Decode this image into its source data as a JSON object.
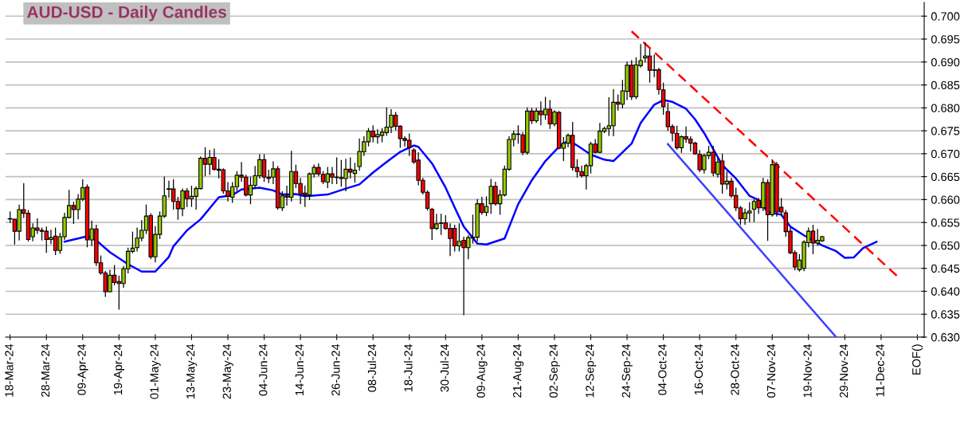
{
  "chart_data": {
    "type": "candlestick",
    "title": "AUD-USD - Daily Candles",
    "categories": [
      "18-Mar-24",
      null,
      null,
      null,
      null,
      null,
      null,
      null,
      "28-Mar-24",
      null,
      null,
      null,
      null,
      null,
      null,
      null,
      "09-Apr-24",
      null,
      null,
      null,
      null,
      null,
      null,
      null,
      "19-Apr-24",
      null,
      null,
      null,
      null,
      null,
      null,
      null,
      "01-May-24",
      null,
      null,
      null,
      null,
      null,
      null,
      null,
      "13-May-24",
      null,
      null,
      null,
      null,
      null,
      null,
      null,
      "23-May-24",
      null,
      null,
      null,
      null,
      null,
      null,
      null,
      "04-Jun-24",
      null,
      null,
      null,
      null,
      null,
      null,
      null,
      "14-Jun-24",
      null,
      null,
      null,
      null,
      null,
      null,
      null,
      "26-Jun-24",
      null,
      null,
      null,
      null,
      null,
      null,
      null,
      "08-Jul-24",
      null,
      null,
      null,
      null,
      null,
      null,
      null,
      "18-Jul-24",
      null,
      null,
      null,
      null,
      null,
      null,
      null,
      "30-Jul-24",
      null,
      null,
      null,
      null,
      null,
      null,
      null,
      "09-Aug-24",
      null,
      null,
      null,
      null,
      null,
      null,
      null,
      "21-Aug-24",
      null,
      null,
      null,
      null,
      null,
      null,
      null,
      "02-Sep-24",
      null,
      null,
      null,
      null,
      null,
      null,
      null,
      "12-Sep-24",
      null,
      null,
      null,
      null,
      null,
      null,
      null,
      "24-Sep-24",
      null,
      null,
      null,
      null,
      null,
      null,
      null,
      "04-Oct-24",
      null,
      null,
      null,
      null,
      null,
      null,
      null,
      "16-Oct-24",
      null,
      null,
      null,
      null,
      null,
      null,
      null,
      "28-Oct-24",
      null,
      null,
      null,
      null,
      null,
      null,
      null,
      "07-Nov-24",
      null,
      null,
      null,
      null,
      null,
      null,
      null,
      "19-Nov-24",
      null,
      null,
      null,
      null,
      null,
      null,
      null,
      "29-Nov-24",
      null,
      null,
      null,
      null,
      null,
      null,
      null,
      "11-Dec-24",
      null,
      null,
      null,
      null,
      null,
      null,
      null,
      "EOF()",
      null
    ],
    "ylim": [
      0.63,
      0.703
    ],
    "yticks": [
      {
        "value": 0.63,
        "label": "0.630"
      },
      {
        "value": 0.635,
        "label": "0.635"
      },
      {
        "value": 0.64,
        "label": "0.640"
      },
      {
        "value": 0.645,
        "label": "0.645"
      },
      {
        "value": 0.65,
        "label": "0.650"
      },
      {
        "value": 0.655,
        "label": "0.655"
      },
      {
        "value": 0.66,
        "label": "0.660"
      },
      {
        "value": 0.665,
        "label": "0.665"
      },
      {
        "value": 0.67,
        "label": "0.670"
      },
      {
        "value": 0.675,
        "label": "0.675"
      },
      {
        "value": 0.68,
        "label": "0.680"
      },
      {
        "value": 0.685,
        "label": "0.685"
      },
      {
        "value": 0.69,
        "label": "0.690"
      },
      {
        "value": 0.695,
        "label": "0.695"
      },
      {
        "value": 0.7,
        "label": "0.700"
      }
    ],
    "grid": "y",
    "series": [
      {
        "colors": [
          "#000000",
          "#ff0000",
          "#99cc00",
          "#ff0000",
          "#ff0000",
          "#99cc00",
          "#ff0000",
          "#ff0000",
          "#ff0000",
          "#99cc00",
          "#ff0000",
          "#99cc00",
          "#99cc00",
          "#99cc00",
          "#ff0000",
          "#99cc00",
          "#99cc00",
          "#ff0000",
          "#99cc00",
          "#ff0000",
          "#ff0000",
          "#ff0000",
          "#99cc00",
          "#ff0000",
          "#ff0000",
          "#99cc00",
          "#99cc00",
          "#99cc00",
          "#99cc00",
          "#99cc00",
          "#99cc00",
          "#ff0000",
          "#99cc00",
          "#99cc00",
          "#99cc00",
          "#000000",
          "#ff0000",
          "#ff0000",
          "#99cc00",
          "#ff0000",
          "#99cc00",
          "#99cc00",
          "#99cc00",
          "#ff0000",
          "#99cc00",
          "#ff0000",
          "#ff0000",
          "#ff0000",
          "#ff0000",
          "#99cc00",
          "#99cc00",
          "#ff0000",
          "#ff0000",
          "#99cc00",
          "#99cc00",
          "#99cc00",
          "#ff0000",
          "#ff0000",
          "#99cc00",
          "#ff0000",
          "#99cc00",
          "#ff0000",
          "#99cc00",
          "#ff0000",
          "#ff0000",
          "#ff0000",
          "#99cc00",
          "#99cc00",
          "#ff0000",
          "#ff0000",
          "#99cc00",
          "#ff0000",
          "#ff0000",
          "#ff0000",
          "#99cc00",
          "#ff0000",
          "#99cc00",
          "#99cc00",
          "#99cc00",
          "#99cc00",
          "#ff0000",
          "#99cc00",
          "#99cc00",
          "#99cc00",
          "#99cc00",
          "#ff0000",
          "#ff0000",
          "#ff0000",
          "#ff0000",
          "#ff0000",
          "#ff0000",
          "#ff0000",
          "#ff0000",
          "#ff0000",
          "#99cc00",
          "#99cc00",
          "#ff0000",
          "#ff0000",
          "#ff0000",
          "#99cc00",
          "#ff0000",
          "#99cc00",
          "#99cc00",
          "#99cc00",
          "#ff0000",
          "#99cc00",
          "#99cc00",
          "#ff0000",
          "#99cc00",
          "#99cc00",
          "#99cc00",
          "#99cc00",
          "#ff0000",
          "#ff0000",
          "#99cc00",
          "#ff0000",
          "#99cc00",
          "#ff0000",
          "#99cc00",
          "#ff0000",
          "#99cc00",
          "#ff0000",
          "#99cc00",
          "#99cc00",
          "#ff0000",
          "#ff0000",
          "#ff0000",
          "#99cc00",
          "#99cc00",
          "#ff0000",
          "#99cc00",
          "#99cc00",
          "#99cc00",
          "#99cc00",
          "#ff0000",
          "#99cc00",
          "#99cc00",
          "#ff0000",
          "#99cc00",
          "#99cc00",
          "#99cc00",
          "#ff0000",
          "#ff0000",
          "#ff0000",
          "#ff0000",
          "#ff0000",
          "#ff0000",
          "#ff0000",
          "#99cc00",
          "#ff0000",
          "#ff0000",
          "#ff0000",
          "#ff0000",
          "#99cc00",
          "#99cc00",
          "#ff0000",
          "#99cc00",
          "#ff0000",
          "#99cc00",
          "#ff0000",
          "#ff0000",
          "#ff0000",
          "#99cc00",
          "#99cc00",
          "#99cc00",
          "#ff0000",
          "#99cc00",
          "#ff0000",
          "#99cc00",
          "#ff0000",
          "#ff0000",
          "#ff0000",
          "#ff0000",
          "#ff0000",
          "#99cc00",
          "#99cc00",
          "#99cc00",
          "#ff0000",
          "#99cc00",
          "#99cc00",
          null,
          null,
          null,
          null,
          null,
          null,
          null,
          null,
          null,
          null,
          null,
          null,
          null,
          null,
          null,
          null,
          null,
          null,
          null,
          null,
          null,
          null
        ],
        "ohlc": [
          [
            0.6558,
            0.6573,
            0.655,
            0.6558
          ],
          [
            0.6557,
            0.6557,
            0.6503,
            0.6531
          ],
          [
            0.6531,
            0.6588,
            0.6512,
            0.6578
          ],
          [
            0.6578,
            0.6635,
            0.6561,
            0.657
          ],
          [
            0.657,
            0.6576,
            0.651,
            0.6513
          ],
          [
            0.6519,
            0.6547,
            0.651,
            0.6538
          ],
          [
            0.6538,
            0.6558,
            0.6526,
            0.6533
          ],
          [
            0.6533,
            0.6538,
            0.6512,
            0.6531
          ],
          [
            0.6531,
            0.654,
            0.6485,
            0.6513
          ],
          [
            0.6513,
            0.6533,
            0.6504,
            0.6517
          ],
          [
            0.652,
            0.6538,
            0.648,
            0.6489
          ],
          [
            0.6489,
            0.6526,
            0.6483,
            0.6519
          ],
          [
            0.6519,
            0.657,
            0.6513,
            0.6561
          ],
          [
            0.6561,
            0.662,
            0.656,
            0.6587
          ],
          [
            0.6587,
            0.6594,
            0.6548,
            0.6578
          ],
          [
            0.6578,
            0.6611,
            0.6558,
            0.6601
          ],
          [
            0.6601,
            0.6643,
            0.6598,
            0.6626
          ],
          [
            0.6627,
            0.6632,
            0.6497,
            0.6512
          ],
          [
            0.6512,
            0.6553,
            0.65,
            0.6536
          ],
          [
            0.6536,
            0.6544,
            0.6456,
            0.6462
          ],
          [
            0.6462,
            0.6477,
            0.6437,
            0.644
          ],
          [
            0.644,
            0.6443,
            0.6389,
            0.6399
          ],
          [
            0.6399,
            0.6446,
            0.6399,
            0.6435
          ],
          [
            0.6435,
            0.6456,
            0.6414,
            0.6419
          ],
          [
            0.6421,
            0.6433,
            0.6361,
            0.6417
          ],
          [
            0.6417,
            0.6454,
            0.6409,
            0.6449
          ],
          [
            0.6449,
            0.6494,
            0.644,
            0.6487
          ],
          [
            0.6487,
            0.6529,
            0.6484,
            0.6494
          ],
          [
            0.6495,
            0.6538,
            0.6488,
            0.6516
          ],
          [
            0.6516,
            0.6554,
            0.651,
            0.6533
          ],
          [
            0.6533,
            0.6588,
            0.6526,
            0.6564
          ],
          [
            0.6565,
            0.6569,
            0.6471,
            0.6475
          ],
          [
            0.6475,
            0.6541,
            0.6464,
            0.6524
          ],
          [
            0.6524,
            0.6573,
            0.6515,
            0.6564
          ],
          [
            0.6564,
            0.6649,
            0.6561,
            0.6608
          ],
          [
            0.6623,
            0.664,
            0.6605,
            0.6623
          ],
          [
            0.6623,
            0.6643,
            0.6579,
            0.6596
          ],
          [
            0.6596,
            0.6605,
            0.6557,
            0.658
          ],
          [
            0.658,
            0.6623,
            0.6565,
            0.6619
          ],
          [
            0.6619,
            0.6624,
            0.6585,
            0.6602
          ],
          [
            0.6602,
            0.6629,
            0.6585,
            0.6607
          ],
          [
            0.6607,
            0.6628,
            0.6579,
            0.6624
          ],
          [
            0.6624,
            0.6693,
            0.6623,
            0.669
          ],
          [
            0.669,
            0.6713,
            0.6652,
            0.6677
          ],
          [
            0.6677,
            0.6707,
            0.6655,
            0.6692
          ],
          [
            0.6692,
            0.671,
            0.6664,
            0.6666
          ],
          [
            0.6666,
            0.6687,
            0.6647,
            0.6664
          ],
          [
            0.6665,
            0.6667,
            0.6614,
            0.6619
          ],
          [
            0.6619,
            0.6637,
            0.6597,
            0.6607
          ],
          [
            0.6605,
            0.6637,
            0.6594,
            0.6628
          ],
          [
            0.6628,
            0.6661,
            0.662,
            0.6653
          ],
          [
            0.6653,
            0.6681,
            0.664,
            0.6649
          ],
          [
            0.6649,
            0.6653,
            0.6608,
            0.661
          ],
          [
            0.661,
            0.6649,
            0.6591,
            0.6631
          ],
          [
            0.6631,
            0.6672,
            0.6626,
            0.6652
          ],
          [
            0.6652,
            0.6698,
            0.6647,
            0.6687
          ],
          [
            0.6687,
            0.6698,
            0.664,
            0.6649
          ],
          [
            0.6649,
            0.6664,
            0.6637,
            0.6646
          ],
          [
            0.6649,
            0.6682,
            0.6635,
            0.6667
          ],
          [
            0.6667,
            0.6672,
            0.6579,
            0.6582
          ],
          [
            0.6582,
            0.6617,
            0.6576,
            0.6608
          ],
          [
            0.6608,
            0.6629,
            0.6588,
            0.6605
          ],
          [
            0.6605,
            0.6705,
            0.6597,
            0.6661
          ],
          [
            0.6661,
            0.6675,
            0.6626,
            0.6635
          ],
          [
            0.6635,
            0.6646,
            0.6591,
            0.6612
          ],
          [
            0.6614,
            0.6629,
            0.6585,
            0.661
          ],
          [
            0.661,
            0.6658,
            0.66,
            0.6656
          ],
          [
            0.6656,
            0.6675,
            0.6649,
            0.667
          ],
          [
            0.667,
            0.6678,
            0.6652,
            0.6656
          ],
          [
            0.6655,
            0.6661,
            0.6635,
            0.6639
          ],
          [
            0.6638,
            0.667,
            0.6626,
            0.6656
          ],
          [
            0.6656,
            0.667,
            0.6635,
            0.6649
          ],
          [
            0.6649,
            0.6691,
            0.6635,
            0.6648
          ],
          [
            0.6648,
            0.6685,
            0.6629,
            0.6646
          ],
          [
            0.6646,
            0.6688,
            0.6619,
            0.6666
          ],
          [
            0.6666,
            0.6691,
            0.6647,
            0.666
          ],
          [
            0.6657,
            0.6679,
            0.6638,
            0.6664
          ],
          [
            0.6672,
            0.6732,
            0.6664,
            0.6705
          ],
          [
            0.6704,
            0.6737,
            0.6696,
            0.6726
          ],
          [
            0.6726,
            0.6755,
            0.6717,
            0.6749
          ],
          [
            0.6749,
            0.6761,
            0.6726,
            0.6737
          ],
          [
            0.6737,
            0.6752,
            0.6723,
            0.6742
          ],
          [
            0.674,
            0.6755,
            0.6726,
            0.6747
          ],
          [
            0.6746,
            0.68,
            0.674,
            0.6758
          ],
          [
            0.6758,
            0.6796,
            0.6746,
            0.6784
          ],
          [
            0.6784,
            0.679,
            0.6752,
            0.676
          ],
          [
            0.676,
            0.6761,
            0.6714,
            0.6733
          ],
          [
            0.6733,
            0.6737,
            0.6717,
            0.6729
          ],
          [
            0.6729,
            0.6743,
            0.6696,
            0.6714
          ],
          [
            0.6708,
            0.6711,
            0.6679,
            0.6682
          ],
          [
            0.6686,
            0.6702,
            0.6632,
            0.6642
          ],
          [
            0.6642,
            0.6646,
            0.6612,
            0.6616
          ],
          [
            0.6616,
            0.6619,
            0.6577,
            0.6581
          ],
          [
            0.6579,
            0.6581,
            0.6513,
            0.6537
          ],
          [
            0.6537,
            0.6568,
            0.6535,
            0.6547
          ],
          [
            0.6548,
            0.6568,
            0.6524,
            0.6549
          ],
          [
            0.6549,
            0.6565,
            0.6535,
            0.6537
          ],
          [
            0.6537,
            0.6547,
            0.6478,
            0.6515
          ],
          [
            0.6537,
            0.6544,
            0.6488,
            0.6499
          ],
          [
            0.6499,
            0.6547,
            0.6488,
            0.6509
          ],
          [
            0.6511,
            0.6518,
            0.6349,
            0.6495
          ],
          [
            0.6495,
            0.6521,
            0.6471,
            0.6517
          ],
          [
            0.6516,
            0.6566,
            0.6505,
            0.6518
          ],
          [
            0.6518,
            0.66,
            0.651,
            0.6591
          ],
          [
            0.6591,
            0.6605,
            0.6568,
            0.6572
          ],
          [
            0.6572,
            0.6606,
            0.6565,
            0.6585
          ],
          [
            0.6591,
            0.6644,
            0.657,
            0.6629
          ],
          [
            0.6629,
            0.6638,
            0.6588,
            0.6591
          ],
          [
            0.6591,
            0.662,
            0.6568,
            0.661
          ],
          [
            0.661,
            0.6673,
            0.6608,
            0.6666
          ],
          [
            0.6666,
            0.6737,
            0.6664,
            0.6731
          ],
          [
            0.6731,
            0.6749,
            0.6717,
            0.6743
          ],
          [
            0.6743,
            0.6761,
            0.6723,
            0.6742
          ],
          [
            0.6741,
            0.6746,
            0.6698,
            0.6703
          ],
          [
            0.6703,
            0.68,
            0.6699,
            0.6793
          ],
          [
            0.6793,
            0.6799,
            0.6766,
            0.6772
          ],
          [
            0.6772,
            0.6799,
            0.6768,
            0.6793
          ],
          [
            0.6793,
            0.6813,
            0.6763,
            0.6785
          ],
          [
            0.6785,
            0.6823,
            0.6775,
            0.6797
          ],
          [
            0.6797,
            0.6816,
            0.6755,
            0.6765
          ],
          [
            0.6765,
            0.6794,
            0.6761,
            0.6791
          ],
          [
            0.679,
            0.6792,
            0.6711,
            0.6712
          ],
          [
            0.6712,
            0.6735,
            0.6685,
            0.6723
          ],
          [
            0.6723,
            0.6743,
            0.6715,
            0.674
          ],
          [
            0.674,
            0.6768,
            0.6664,
            0.667
          ],
          [
            0.667,
            0.6687,
            0.6649,
            0.6661
          ],
          [
            0.6661,
            0.6673,
            0.6649,
            0.6652
          ],
          [
            0.6652,
            0.6677,
            0.6623,
            0.6674
          ],
          [
            0.6674,
            0.6725,
            0.6658,
            0.6721
          ],
          [
            0.6721,
            0.6731,
            0.6702,
            0.6703
          ],
          [
            0.6703,
            0.6766,
            0.6702,
            0.6749
          ],
          [
            0.6749,
            0.6758,
            0.6746,
            0.6755
          ],
          [
            0.6755,
            0.6822,
            0.674,
            0.6761
          ],
          [
            0.6761,
            0.684,
            0.6739,
            0.6812
          ],
          [
            0.6812,
            0.6828,
            0.6795,
            0.6808
          ],
          [
            0.6808,
            0.686,
            0.68,
            0.6837
          ],
          [
            0.6836,
            0.69,
            0.6818,
            0.6893
          ],
          [
            0.6893,
            0.6903,
            0.6818,
            0.6824
          ],
          [
            0.6824,
            0.6909,
            0.682,
            0.6894
          ],
          [
            0.6892,
            0.6938,
            0.6889,
            0.6903
          ],
          [
            0.6909,
            0.6941,
            0.69,
            0.6913
          ],
          [
            0.6913,
            0.6927,
            0.6856,
            0.6882
          ],
          [
            0.6883,
            0.6915,
            0.6868,
            0.6882
          ],
          [
            0.6883,
            0.6886,
            0.683,
            0.684
          ],
          [
            0.6839,
            0.6854,
            0.6786,
            0.6803
          ],
          [
            0.6792,
            0.681,
            0.6751,
            0.6759
          ],
          [
            0.6759,
            0.6763,
            0.6728,
            0.6745
          ],
          [
            0.6744,
            0.676,
            0.671,
            0.6713
          ],
          [
            0.6713,
            0.6739,
            0.6703,
            0.6737
          ],
          [
            0.6737,
            0.6758,
            0.6725,
            0.6732
          ],
          [
            0.6732,
            0.6737,
            0.6706,
            0.6723
          ],
          [
            0.6723,
            0.6725,
            0.6699,
            0.67
          ],
          [
            0.6699,
            0.6707,
            0.6661,
            0.6665
          ],
          [
            0.6665,
            0.6699,
            0.6658,
            0.6696
          ],
          [
            0.6696,
            0.6716,
            0.6689,
            0.6703
          ],
          [
            0.6703,
            0.6716,
            0.6652,
            0.6658
          ],
          [
            0.6655,
            0.669,
            0.6649,
            0.6682
          ],
          [
            0.6684,
            0.6699,
            0.6614,
            0.6634
          ],
          [
            0.6634,
            0.666,
            0.6623,
            0.664
          ],
          [
            0.664,
            0.6646,
            0.6605,
            0.6608
          ],
          [
            0.6609,
            0.6625,
            0.6576,
            0.6582
          ],
          [
            0.6582,
            0.6585,
            0.6546,
            0.6558
          ],
          [
            0.6558,
            0.6579,
            0.6546,
            0.6571
          ],
          [
            0.6571,
            0.6593,
            0.6552,
            0.6575
          ],
          [
            0.6579,
            0.6599,
            0.6552,
            0.6596
          ],
          [
            0.6598,
            0.6602,
            0.657,
            0.6582
          ],
          [
            0.6582,
            0.6646,
            0.6576,
            0.6637
          ],
          [
            0.6637,
            0.6643,
            0.6511,
            0.6567
          ],
          [
            0.6567,
            0.6687,
            0.6564,
            0.6676
          ],
          [
            0.6676,
            0.6681,
            0.6564,
            0.6573
          ],
          [
            0.6583,
            0.6602,
            0.6567,
            0.6573
          ],
          [
            0.6571,
            0.6576,
            0.652,
            0.653
          ],
          [
            0.6531,
            0.6538,
            0.6482,
            0.6484
          ],
          [
            0.6484,
            0.6488,
            0.6447,
            0.6453
          ],
          [
            0.6447,
            0.648,
            0.6444,
            0.6468
          ],
          [
            0.645,
            0.651,
            0.6445,
            0.6507
          ],
          [
            0.6506,
            0.6538,
            0.6497,
            0.6531
          ],
          [
            0.6531,
            0.6544,
            0.6482,
            0.6505
          ],
          [
            0.6505,
            0.6535,
            0.65,
            0.6511
          ],
          [
            0.651,
            0.652,
            0.6509,
            0.6519
          ],
          null,
          null,
          null,
          null,
          null,
          null,
          null,
          null,
          null,
          null,
          null,
          null,
          null,
          null,
          null,
          null,
          null,
          null,
          null,
          null,
          null,
          null
        ]
      },
      {
        "type": "line",
        "color": "#0000ff",
        "values": [
          null,
          null,
          null,
          null,
          null,
          null,
          null,
          null,
          null,
          null,
          null,
          null,
          0.6508,
          null,
          null,
          null,
          null,
          0.652,
          null,
          0.6511,
          null,
          null,
          0.6485,
          null,
          null,
          null,
          0.6459,
          null,
          null,
          0.6443,
          null,
          null,
          0.6443,
          null,
          null,
          0.6475,
          0.6498,
          null,
          null,
          0.6533,
          null,
          null,
          0.6557,
          null,
          null,
          null,
          0.6605,
          null,
          null,
          0.661,
          null,
          0.6622,
          null,
          null,
          null,
          0.6626,
          null,
          null,
          0.662,
          null,
          0.6611,
          null,
          null,
          0.6612,
          null,
          0.6607,
          null,
          null,
          null,
          null,
          0.6611,
          null,
          null,
          null,
          0.6624,
          null,
          null,
          0.6633,
          null,
          null,
          0.6659,
          null,
          null,
          0.6682,
          null,
          null,
          0.6704,
          null,
          null,
          0.6718,
          0.6715,
          null,
          null,
          0.6679,
          null,
          null,
          0.6626,
          null,
          0.6583,
          null,
          0.6541,
          null,
          null,
          0.6504,
          null,
          0.6502,
          null,
          null,
          null,
          0.6515,
          null,
          null,
          0.659,
          null,
          null,
          0.6642,
          null,
          null,
          0.6684,
          null,
          null,
          0.6715,
          null,
          0.6729,
          null,
          0.6718,
          null,
          null,
          0.6698,
          null,
          null,
          0.6687,
          null,
          0.6684,
          null,
          0.6703,
          null,
          0.6722,
          null,
          0.6767,
          null,
          null,
          0.6807,
          null,
          0.6817,
          null,
          0.6813,
          null,
          null,
          0.6798,
          null,
          0.6775,
          null,
          0.6745,
          null,
          0.671,
          null,
          0.6675,
          null,
          null,
          0.6646,
          null,
          null,
          0.6608,
          null,
          0.6599,
          null,
          0.6573,
          null,
          null,
          0.6567,
          null,
          0.6541,
          null,
          null,
          0.6522,
          null,
          null,
          null,
          0.65,
          null,
          null,
          0.6488,
          null,
          0.6473,
          null,
          0.6474,
          null,
          0.6494,
          null,
          null,
          0.6508,
          null,
          null,
          null,
          null,
          null,
          null,
          null,
          null,
          null,
          null
        ]
      },
      {
        "type": "line",
        "color": "#ff0000",
        "line_style": "dashed",
        "values": [
          null,
          null,
          null,
          null,
          null,
          null,
          null,
          null,
          null,
          null,
          null,
          null,
          null,
          null,
          null,
          null,
          null,
          null,
          null,
          null,
          null,
          null,
          null,
          null,
          null,
          null,
          null,
          null,
          null,
          null,
          null,
          null,
          null,
          null,
          null,
          null,
          null,
          null,
          null,
          null,
          null,
          null,
          null,
          null,
          null,
          null,
          null,
          null,
          null,
          null,
          null,
          null,
          null,
          null,
          null,
          null,
          null,
          null,
          null,
          null,
          null,
          null,
          null,
          null,
          null,
          null,
          null,
          null,
          null,
          null,
          null,
          null,
          null,
          null,
          null,
          null,
          null,
          null,
          null,
          null,
          null,
          null,
          null,
          null,
          null,
          null,
          null,
          null,
          null,
          null,
          null,
          null,
          null,
          null,
          null,
          null,
          null,
          null,
          null,
          null,
          null,
          null,
          null,
          null,
          null,
          null,
          null,
          null,
          null,
          null,
          null,
          null,
          null,
          null,
          null,
          null,
          null,
          null,
          null,
          null,
          null,
          null,
          null,
          null,
          null,
          null,
          null,
          null,
          null,
          null,
          null,
          null,
          null,
          null,
          null,
          null,
          null,
          0.6967,
          null,
          null,
          null,
          null,
          null,
          null,
          null,
          null,
          null,
          null,
          null,
          null,
          null,
          null,
          null,
          null,
          null,
          null,
          null,
          null,
          null,
          null,
          null,
          null,
          null,
          null,
          null,
          null,
          null,
          null,
          null,
          null,
          null,
          null,
          null,
          null,
          null,
          null,
          null,
          null,
          null,
          null,
          null,
          null,
          null,
          null,
          null,
          null,
          null,
          null,
          null,
          null,
          null,
          null,
          null,
          null,
          null,
          null,
          0.6429,
          null,
          null,
          null,
          null,
          null
        ]
      },
      {
        "type": "line",
        "color": "#4040ff",
        "values": [
          null,
          null,
          null,
          null,
          null,
          null,
          null,
          null,
          null,
          null,
          null,
          null,
          null,
          null,
          null,
          null,
          null,
          null,
          null,
          null,
          null,
          null,
          null,
          null,
          null,
          null,
          null,
          null,
          null,
          null,
          null,
          null,
          null,
          null,
          null,
          null,
          null,
          null,
          null,
          null,
          null,
          null,
          null,
          null,
          null,
          null,
          null,
          null,
          null,
          null,
          null,
          null,
          null,
          null,
          null,
          null,
          null,
          null,
          null,
          null,
          null,
          null,
          null,
          null,
          null,
          null,
          null,
          null,
          null,
          null,
          null,
          null,
          null,
          null,
          null,
          null,
          null,
          null,
          null,
          null,
          null,
          null,
          null,
          null,
          null,
          null,
          null,
          null,
          null,
          null,
          null,
          null,
          null,
          null,
          null,
          null,
          null,
          null,
          null,
          null,
          null,
          null,
          null,
          null,
          null,
          null,
          null,
          null,
          null,
          null,
          null,
          null,
          null,
          null,
          null,
          null,
          null,
          null,
          null,
          null,
          null,
          null,
          null,
          null,
          null,
          null,
          null,
          null,
          null,
          null,
          null,
          null,
          null,
          null,
          null,
          null,
          null,
          null,
          null,
          null,
          null,
          null,
          null,
          null,
          null,
          0.6721,
          null,
          null,
          null,
          null,
          null,
          null,
          null,
          null,
          null,
          null,
          null,
          null,
          null,
          null,
          null,
          null,
          null,
          null,
          null,
          null,
          null,
          null,
          null,
          null,
          null,
          null,
          null,
          null,
          null,
          null,
          null,
          null,
          null,
          null,
          null,
          null,
          0.6301,
          null,
          null,
          null,
          null,
          null,
          null,
          null,
          null,
          null,
          null,
          null,
          null,
          null,
          null,
          null,
          null,
          null,
          null,
          null
        ]
      }
    ]
  }
}
